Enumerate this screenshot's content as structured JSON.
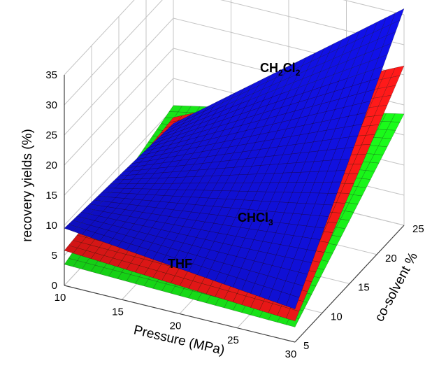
{
  "chart_data": {
    "type": "surface3d",
    "x": {
      "label": "Pressure (MPa)",
      "range": [
        10,
        30
      ],
      "ticks": [
        10,
        15,
        20,
        25,
        30
      ]
    },
    "y": {
      "label": "co-solvent %",
      "range": [
        5,
        25
      ],
      "ticks": [
        5,
        10,
        15,
        20,
        25
      ]
    },
    "z": {
      "label": "recovery yields (%)",
      "range": [
        0,
        35
      ],
      "ticks": [
        0,
        5,
        10,
        15,
        20,
        25,
        30,
        35
      ]
    },
    "grid": true,
    "series": [
      {
        "label_main": "THF",
        "label_sub": "",
        "color": "#18e818",
        "corner_values": {
          "p10_c5": 3.5,
          "p30_c5": 2.5,
          "p10_c25": 10.5,
          "p30_c25": 18.5
        }
      },
      {
        "label_main": "CHCl",
        "label_sub": "3",
        "color": "#ee1818",
        "corner_values": {
          "p10_c5": 5.8,
          "p30_c5": 3.5,
          "p10_c25": 8.5,
          "p30_c25": 26.5
        }
      },
      {
        "label_main": "CH",
        "label_sub": "2",
        "label_main2": "Cl",
        "label_sub2": "2",
        "color": "#1010d8",
        "corner_values": {
          "p10_c5": 9.5,
          "p30_c5": 5.5,
          "p10_c25": 7.5,
          "p30_c25": 36.0
        }
      }
    ]
  }
}
